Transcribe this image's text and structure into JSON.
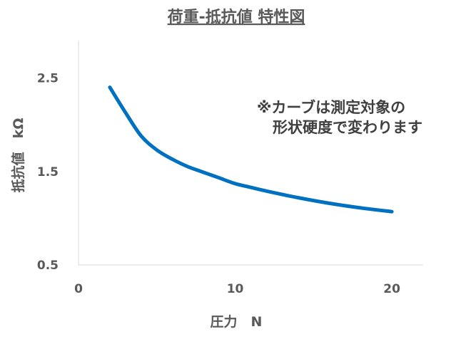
{
  "chart_data": {
    "type": "line",
    "title": "荷重-抵抗値 特性図",
    "xlabel": "圧力　N",
    "ylabel": "抵抗値　kΩ",
    "xlim": [
      0,
      22
    ],
    "ylim": [
      0.5,
      2.9
    ],
    "x_ticks": [
      "0",
      "10",
      "20"
    ],
    "x_tick_values": [
      0,
      10,
      20
    ],
    "y_ticks": [
      "0.5",
      "1.5",
      "2.5"
    ],
    "y_tick_values": [
      0.5,
      1.5,
      2.5
    ],
    "grid": false,
    "legend": "none",
    "annotation": [
      "※カーブは測定対象の",
      "形状硬度で変わります"
    ],
    "series": [
      {
        "color": "#0070C0",
        "x": [
          2,
          3,
          4,
          5,
          6,
          7,
          8,
          9,
          10,
          11,
          12,
          14,
          16,
          18,
          20
        ],
        "y": [
          2.4,
          2.13,
          1.88,
          1.73,
          1.63,
          1.55,
          1.49,
          1.43,
          1.37,
          1.33,
          1.29,
          1.22,
          1.16,
          1.11,
          1.07
        ]
      }
    ]
  }
}
